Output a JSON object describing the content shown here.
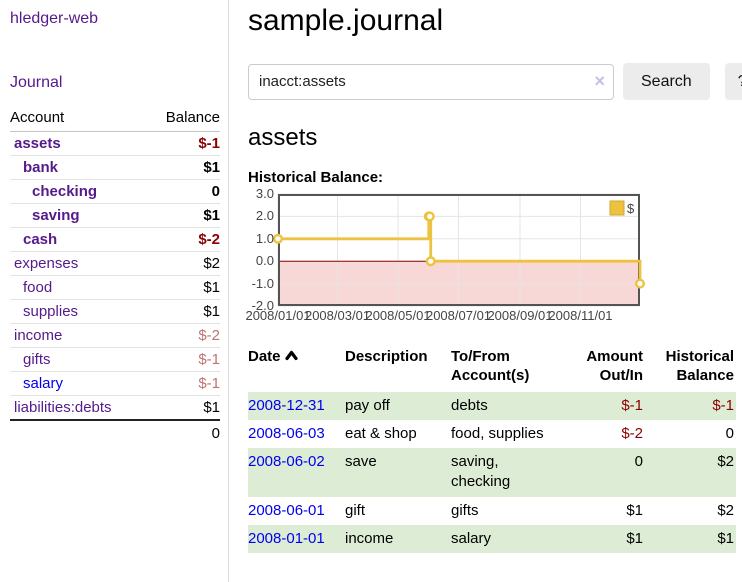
{
  "app": {
    "title": "hledger-web",
    "nav_journal": "Journal"
  },
  "sidebar": {
    "headers": {
      "account": "Account",
      "balance": "Balance"
    },
    "accounts": [
      {
        "name": "assets",
        "balance": "$-1",
        "level": 1,
        "bold": true,
        "neg": "strong",
        "link": "purple"
      },
      {
        "name": "bank",
        "balance": "$1",
        "level": 2,
        "bold": true,
        "neg": "none",
        "link": "purple"
      },
      {
        "name": "checking",
        "balance": "0",
        "level": 3,
        "bold": true,
        "neg": "none",
        "link": "purple"
      },
      {
        "name": "saving",
        "balance": "$1",
        "level": 3,
        "bold": true,
        "neg": "none",
        "link": "purple"
      },
      {
        "name": "cash",
        "balance": "$-2",
        "level": 2,
        "bold": true,
        "neg": "strong",
        "link": "purple"
      },
      {
        "name": "expenses",
        "balance": "$2",
        "level": 1,
        "bold": false,
        "neg": "none",
        "link": "purple"
      },
      {
        "name": "food",
        "balance": "$1",
        "level": 2,
        "bold": false,
        "neg": "none",
        "link": "purple"
      },
      {
        "name": "supplies",
        "balance": "$1",
        "level": 2,
        "bold": false,
        "neg": "none",
        "link": "purple"
      },
      {
        "name": "income",
        "balance": "$-2",
        "level": 1,
        "bold": false,
        "neg": "soft",
        "link": "purple"
      },
      {
        "name": "gifts",
        "balance": "$-1",
        "level": 2,
        "bold": false,
        "neg": "soft",
        "link": "purple"
      },
      {
        "name": "salary",
        "balance": "$-1",
        "level": 2,
        "bold": false,
        "neg": "soft",
        "link": "blue"
      },
      {
        "name": "liabilities:debts",
        "balance": "$1",
        "level": 1,
        "bold": false,
        "neg": "none",
        "link": "purple"
      }
    ],
    "total": "0"
  },
  "main": {
    "title": "sample.journal",
    "search": {
      "value": "inacct:assets",
      "clear_icon": "×",
      "button": "Search",
      "help": "?"
    },
    "account_heading": "assets",
    "chart_heading": "Historical Balance:"
  },
  "chart_data": {
    "type": "line",
    "title": "Historical Balance of assets",
    "step": true,
    "legend": "$",
    "legend_position": "top-right",
    "grid": true,
    "series": [
      {
        "name": "$",
        "color": "#edc240",
        "points": [
          {
            "date": "2008-01-01",
            "value": 1
          },
          {
            "date": "2008-06-01",
            "value": 2
          },
          {
            "date": "2008-06-02",
            "value": 2
          },
          {
            "date": "2008-06-03",
            "value": 0
          },
          {
            "date": "2008-12-31",
            "value": -1
          }
        ]
      }
    ],
    "x_range": [
      "2008-01-01",
      "2008-12-31"
    ],
    "x_ticks": [
      {
        "date": "2008-01-01",
        "label": "2008/01/01"
      },
      {
        "date": "2008-03-01",
        "label": "2008/03/01"
      },
      {
        "date": "2008-05-01",
        "label": "2008/05/01"
      },
      {
        "date": "2008-07-01",
        "label": "2008/07/01"
      },
      {
        "date": "2008-09-01",
        "label": "2008/09/01"
      },
      {
        "date": "2008-11-01",
        "label": "2008/11/01"
      }
    ],
    "ylim": [
      -2,
      3
    ],
    "y_ticks": [
      {
        "v": 3,
        "label": "3.0"
      },
      {
        "v": 2,
        "label": "2.0"
      },
      {
        "v": 1,
        "label": "1.0"
      },
      {
        "v": 0,
        "label": "0.0"
      },
      {
        "v": -1,
        "label": "-1.0"
      },
      {
        "v": -2,
        "label": "-2.0"
      }
    ],
    "colors": {
      "line": "#edc240",
      "marker_fill": "#ffffff",
      "negative_region": "#f8d7d7",
      "zero_line": "#8b0000",
      "gridline": "#e5e5e5",
      "border": "#545454",
      "tick_text": "#444444"
    }
  },
  "register": {
    "headers": {
      "date": "Date",
      "description": "Description",
      "accounts": "To/From Account(s)",
      "amount": "Amount Out/In",
      "balance": "Historical Balance"
    },
    "rows": [
      {
        "date": "2008-12-31",
        "description": "pay off",
        "accounts": "debts",
        "amount": "$-1",
        "balance": "$-1",
        "amount_neg": true,
        "balance_neg": true
      },
      {
        "date": "2008-06-03",
        "description": "eat & shop",
        "accounts": "food, supplies",
        "amount": "$-2",
        "balance": "0",
        "amount_neg": true,
        "balance_neg": false
      },
      {
        "date": "2008-06-02",
        "description": "save",
        "accounts": "saving, checking",
        "amount": "0",
        "balance": "$2",
        "amount_neg": false,
        "balance_neg": false
      },
      {
        "date": "2008-06-01",
        "description": "gift",
        "accounts": "gifts",
        "amount": "$1",
        "balance": "$2",
        "amount_neg": false,
        "balance_neg": false
      },
      {
        "date": "2008-01-01",
        "description": "income",
        "accounts": "salary",
        "amount": "$1",
        "balance": "$1",
        "amount_neg": false,
        "balance_neg": false
      }
    ]
  },
  "ui_colors": {
    "link_purple": "#551a8b",
    "link_blue": "#0000ee",
    "negative_strong": "#8b0000",
    "negative_soft": "#bf7373",
    "row_stripe_green": "#ddedd5",
    "button_bg": "#ececec"
  }
}
